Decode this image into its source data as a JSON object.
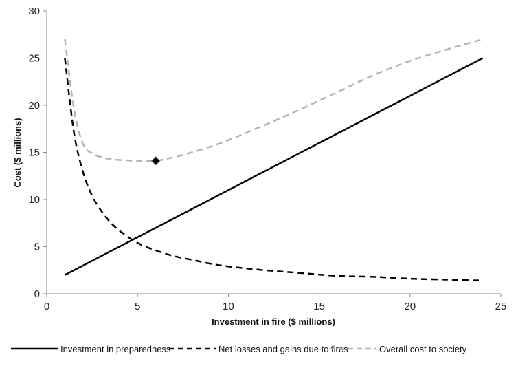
{
  "chart_data": {
    "type": "line",
    "title": "",
    "xlabel": "Investment in fire ($ millions)",
    "ylabel": "Cost ($ millions)",
    "xlim": [
      0,
      25
    ],
    "ylim": [
      0,
      30
    ],
    "x_ticks": [
      "0",
      "5",
      "10",
      "15",
      "20",
      "25"
    ],
    "y_ticks": [
      "0",
      "5",
      "10",
      "15",
      "20",
      "25",
      "30"
    ],
    "grid": false,
    "legend_position": "bottom",
    "series": [
      {
        "name": "Investment in preparedness",
        "color": "#000000",
        "style": "solid",
        "x": [
          1,
          24
        ],
        "y": [
          2,
          25
        ]
      },
      {
        "name": "Net losses and gains due to fires",
        "color": "#000000",
        "style": "dashed",
        "x": [
          1,
          1.5,
          2,
          2.5,
          3,
          3.5,
          4,
          5,
          6,
          7,
          8,
          9,
          10,
          12,
          14,
          16,
          18,
          20,
          22,
          24
        ],
        "y": [
          25,
          17.1,
          12.9,
          10.4,
          8.8,
          7.6,
          6.7,
          5.4,
          4.6,
          4.0,
          3.6,
          3.2,
          2.9,
          2.5,
          2.2,
          1.9,
          1.8,
          1.6,
          1.5,
          1.4
        ]
      },
      {
        "name": "Overall cost to society",
        "color": "#b3b3b3",
        "style": "dashed",
        "x": [
          1,
          1.5,
          2,
          2.5,
          3,
          3.5,
          4,
          5,
          6,
          7,
          8,
          9,
          10,
          12,
          14,
          16,
          18,
          20,
          22,
          24
        ],
        "y": [
          27,
          19.6,
          15.9,
          14.9,
          14.5,
          14.3,
          14.2,
          14.1,
          14.1,
          14.5,
          15.0,
          15.6,
          16.3,
          17.9,
          19.6,
          21.4,
          23.2,
          24.7,
          25.9,
          27
        ]
      }
    ],
    "marker": {
      "x": 6,
      "y": 14.1,
      "shape": "diamond",
      "color": "#000000"
    }
  }
}
